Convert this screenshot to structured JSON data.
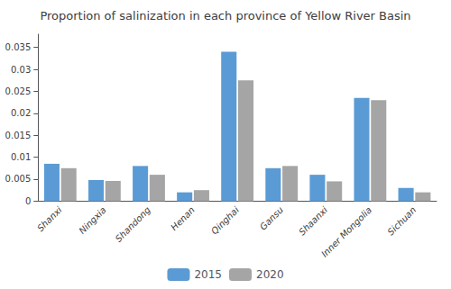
{
  "chart_data": {
    "type": "bar",
    "title": "Proportion of salinization in each province of Yellow River Basin",
    "categories": [
      "Shanxi",
      "Ningxia",
      "Shandong",
      "Henan",
      "Qinghai",
      "Gansu",
      "Shaanxi",
      "Inner Mongolia",
      "Sichuan"
    ],
    "series": [
      {
        "name": "2015",
        "color": "#5B9BD5",
        "values": [
          0.0085,
          0.0048,
          0.008,
          0.002,
          0.034,
          0.0075,
          0.006,
          0.0235,
          0.003
        ]
      },
      {
        "name": "2020",
        "color": "#A5A5A5",
        "values": [
          0.0075,
          0.0046,
          0.006,
          0.0025,
          0.0275,
          0.008,
          0.0045,
          0.023,
          0.002
        ]
      }
    ],
    "ylim": [
      0,
      0.038
    ],
    "yticks": [
      0,
      0.005,
      0.01,
      0.015,
      0.02,
      0.025,
      0.03,
      0.035
    ],
    "grid": false,
    "legend": "bottom"
  }
}
